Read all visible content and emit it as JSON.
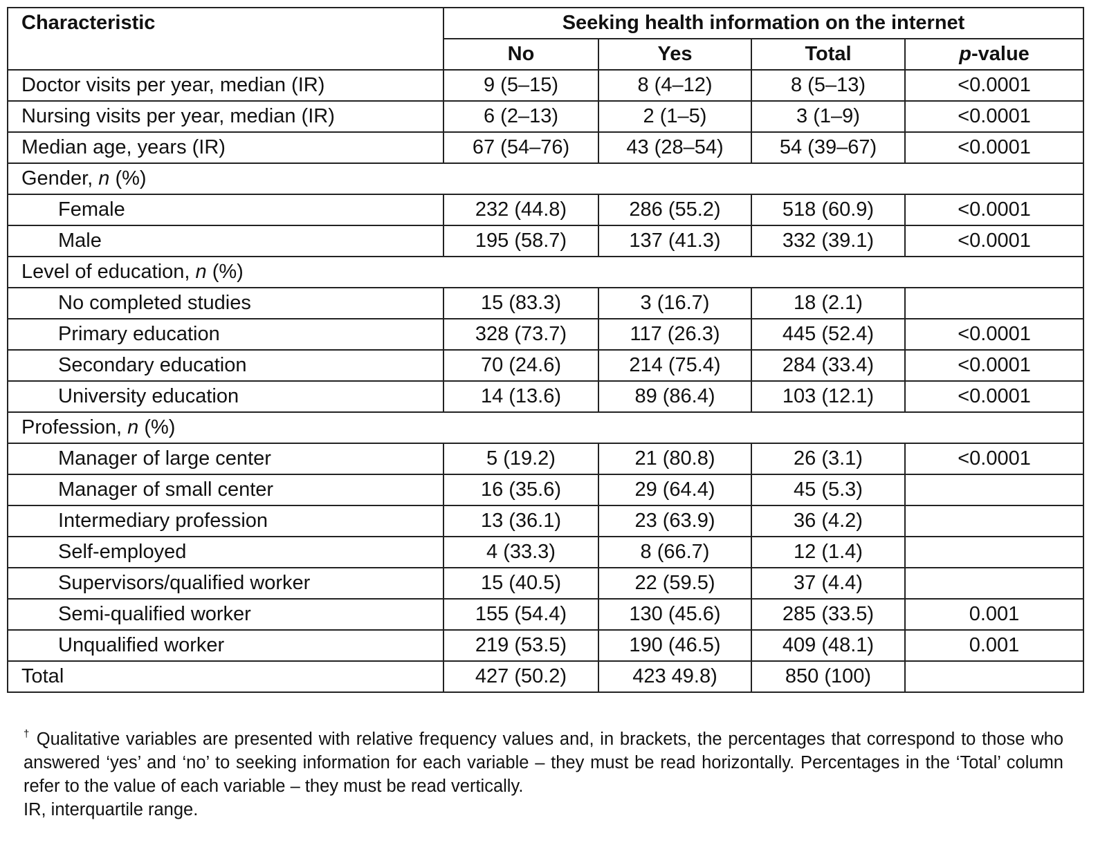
{
  "header": {
    "characteristic": "Characteristic",
    "group_title": "Seeking health information on the internet",
    "columns": [
      "No",
      "Yes",
      "Total"
    ],
    "pvalue_p": "p",
    "pvalue_rest": "-value"
  },
  "rows": [
    {
      "label": "Doctor visits per year, median (IR)",
      "no": "9 (5–15)",
      "yes": "8 (4–12)",
      "total": "8 (5–13)",
      "p": "<0.0001"
    },
    {
      "label": "Nursing visits per year, median (IR)",
      "no": "6 (2–13)",
      "yes": "2 (1–5)",
      "total": "3 (1–9)",
      "p": "<0.0001"
    },
    {
      "label": "Median age, years (IR)",
      "no": "67 (54–76)",
      "yes": "43 (28–54)",
      "total": "54 (39–67)",
      "p": "<0.0001"
    }
  ],
  "gender": {
    "label": "Gender, ",
    "n": "n",
    "pct": " (%)",
    "rows": [
      {
        "label": "Female",
        "no": "232 (44.8)",
        "yes": "286 (55.2)",
        "total": "518 (60.9)",
        "p": "<0.0001"
      },
      {
        "label": "Male",
        "no": "195 (58.7)",
        "yes": "137 (41.3)",
        "total": "332 (39.1)",
        "p": "<0.0001"
      }
    ]
  },
  "education": {
    "label": "Level of education, ",
    "n": "n",
    "pct": " (%)",
    "rows": [
      {
        "label": "No completed studies",
        "no": "15 (83.3)",
        "yes": "3 (16.7)",
        "total": "18 (2.1)",
        "p": ""
      },
      {
        "label": "Primary education",
        "no": "328 (73.7)",
        "yes": "117 (26.3)",
        "total": "445 (52.4)",
        "p": "<0.0001"
      },
      {
        "label": "Secondary education",
        "no": "70 (24.6)",
        "yes": "214 (75.4)",
        "total": "284 (33.4)",
        "p": "<0.0001"
      },
      {
        "label": "University education",
        "no": "14 (13.6)",
        "yes": "89 (86.4)",
        "total": "103 (12.1)",
        "p": "<0.0001"
      }
    ]
  },
  "profession": {
    "label": "Profession, ",
    "n": "n",
    "pct": " (%)",
    "rows": [
      {
        "label": "Manager of large center",
        "no": "5 (19.2)",
        "yes": "21 (80.8)",
        "total": "26 (3.1)",
        "p": "<0.0001"
      },
      {
        "label": "Manager of small center",
        "no": "16 (35.6)",
        "yes": "29 (64.4)",
        "total": "45 (5.3)",
        "p": ""
      },
      {
        "label": "Intermediary profession",
        "no": "13 (36.1)",
        "yes": "23 (63.9)",
        "total": "36 (4.2)",
        "p": ""
      },
      {
        "label": "Self-employed",
        "no": "4 (33.3)",
        "yes": "8 (66.7)",
        "total": "12 (1.4)",
        "p": ""
      },
      {
        "label": "Supervisors/qualified worker",
        "no": "15 (40.5)",
        "yes": "22 (59.5)",
        "total": "37 (4.4)",
        "p": ""
      },
      {
        "label": "Semi-qualified worker",
        "no": "155 (54.4)",
        "yes": "130 (45.6)",
        "total": "285 (33.5)",
        "p": "0.001"
      },
      {
        "label": "Unqualified worker",
        "no": "219 (53.5)",
        "yes": "190 (46.5)",
        "total": "409 (48.1)",
        "p": "0.001"
      }
    ]
  },
  "total_row": {
    "label": "Total",
    "no": "427 (50.2)",
    "yes": "423 49.8)",
    "total": "850 (100)",
    "p": ""
  },
  "footnote": {
    "dagger": "†",
    "line1": " Qualitative variables are presented with relative frequency values and, in brackets, the percentages that correspond to those who answered ‘yes’ and ‘no’ to seeking information for each variable – they must be read horizontally. Percentages in the ‘Total’ column refer to the value of each variable – they must be read vertically.",
    "line2": "IR, interquartile range."
  }
}
